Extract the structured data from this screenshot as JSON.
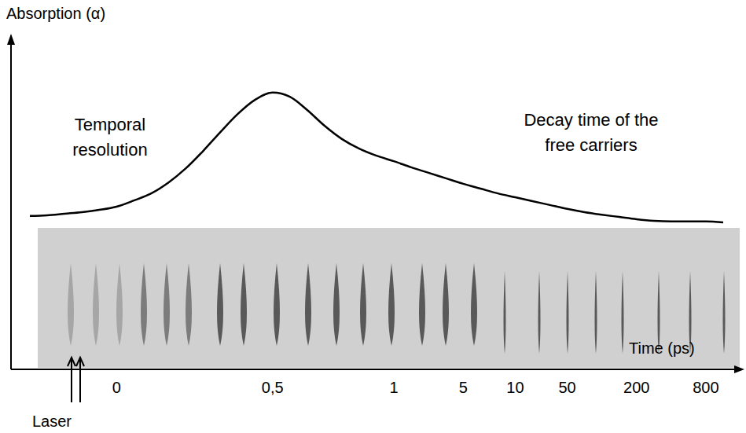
{
  "chart_data": {
    "type": "line",
    "y_label": "Absorption (α)",
    "x_label": "Time (ps)",
    "annotations": [
      "Temporal resolution",
      "Decay time of the free carriers",
      "Laser"
    ],
    "categories": [
      null,
      null,
      null,
      null,
      null,
      "0",
      null,
      null,
      null,
      null,
      null,
      null,
      null,
      null,
      "0,5",
      null,
      null,
      null,
      null,
      null,
      null,
      "1",
      null,
      null,
      null,
      "5",
      null,
      null,
      "10",
      null,
      null,
      "50",
      null,
      null,
      null,
      "200",
      null,
      null,
      null,
      "800",
      null
    ],
    "values": [
      47.6,
      47.8,
      48.3,
      48.8,
      49.5,
      50.5,
      52.4,
      54.6,
      58.0,
      62.4,
      67.8,
      73.7,
      79.3,
      83.7,
      85.9,
      84.6,
      80.5,
      75.6,
      71.5,
      68.5,
      66.3,
      64.6,
      62.7,
      61.0,
      59.3,
      57.6,
      56.1,
      54.6,
      53.4,
      52.2,
      51.0,
      49.8,
      48.8,
      48.0,
      47.3,
      46.6,
      46.1,
      45.9,
      45.9,
      45.9,
      45.6
    ],
    "color": "#000000",
    "ylim": [
      0,
      100
    ],
    "grid": false,
    "tick_labels": "x"
  }
}
